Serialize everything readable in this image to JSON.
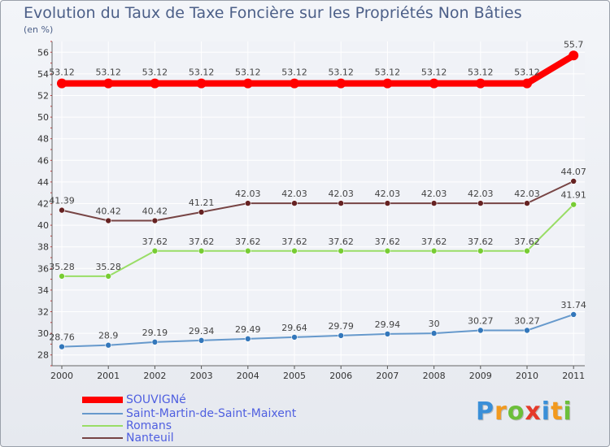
{
  "chart_data": {
    "type": "line",
    "title": "Evolution du Taux de Taxe Foncière sur les Propriétés Non Bâties",
    "ylabel": "(en %)",
    "xlabel": "",
    "categories": [
      "2000",
      "2001",
      "2002",
      "2003",
      "2004",
      "2005",
      "2006",
      "2007",
      "2008",
      "2009",
      "2010",
      "2011"
    ],
    "ylim": [
      27,
      57
    ],
    "yticks": [
      28,
      30,
      32,
      34,
      36,
      38,
      40,
      42,
      44,
      46,
      48,
      50,
      52,
      54,
      56
    ],
    "grid": true,
    "legend_position": "bottom-left",
    "series": [
      {
        "name": "SOUVIGNé",
        "color": "#ff0000",
        "marker_color": "#ff0000",
        "width": "thick",
        "values": [
          53.12,
          53.12,
          53.12,
          53.12,
          53.12,
          53.12,
          53.12,
          53.12,
          53.12,
          53.12,
          53.12,
          55.7
        ],
        "labels": [
          "53.12",
          "53.12",
          "53.12",
          "53.12",
          "53.12",
          "53.12",
          "53.12",
          "53.12",
          "53.12",
          "53.12",
          "53.12",
          "55.7"
        ]
      },
      {
        "name": "Saint-Martin-de-Saint-Maixent",
        "color": "#6699cc",
        "marker_color": "#3377bb",
        "width": "thin",
        "values": [
          28.76,
          28.9,
          29.19,
          29.34,
          29.49,
          29.64,
          29.79,
          29.94,
          30,
          30.27,
          30.27,
          31.74
        ],
        "labels": [
          "28.76",
          "28.9",
          "29.19",
          "29.34",
          "29.49",
          "29.64",
          "29.79",
          "29.94",
          "30",
          "30.27",
          "30.27",
          "31.74"
        ]
      },
      {
        "name": "Romans",
        "color": "#99dd66",
        "marker_color": "#77cc33",
        "width": "thin",
        "values": [
          35.28,
          35.28,
          37.62,
          37.62,
          37.62,
          37.62,
          37.62,
          37.62,
          37.62,
          37.62,
          37.62,
          41.91
        ],
        "labels": [
          "35.28",
          "35.28",
          "37.62",
          "37.62",
          "37.62",
          "37.62",
          "37.62",
          "37.62",
          "37.62",
          "37.62",
          "37.62",
          "41.91"
        ]
      },
      {
        "name": "Nanteuil",
        "color": "#774444",
        "marker_color": "#662222",
        "width": "thin",
        "values": [
          41.39,
          40.42,
          40.42,
          41.21,
          42.03,
          42.03,
          42.03,
          42.03,
          42.03,
          42.03,
          42.03,
          44.07
        ],
        "labels": [
          "41.39",
          "40.42",
          "40.42",
          "41.21",
          "42.03",
          "42.03",
          "42.03",
          "42.03",
          "42.03",
          "42.03",
          "42.03",
          "44.07"
        ]
      }
    ]
  },
  "logo": {
    "letters": [
      "P",
      "r",
      "o",
      "x",
      "i",
      "t",
      "i"
    ],
    "colors": [
      "#3a8fd8",
      "#f29a1e",
      "#6cbf3a",
      "#e53a2a",
      "#3a8fd8",
      "#f29a1e",
      "#6cbf3a"
    ]
  }
}
